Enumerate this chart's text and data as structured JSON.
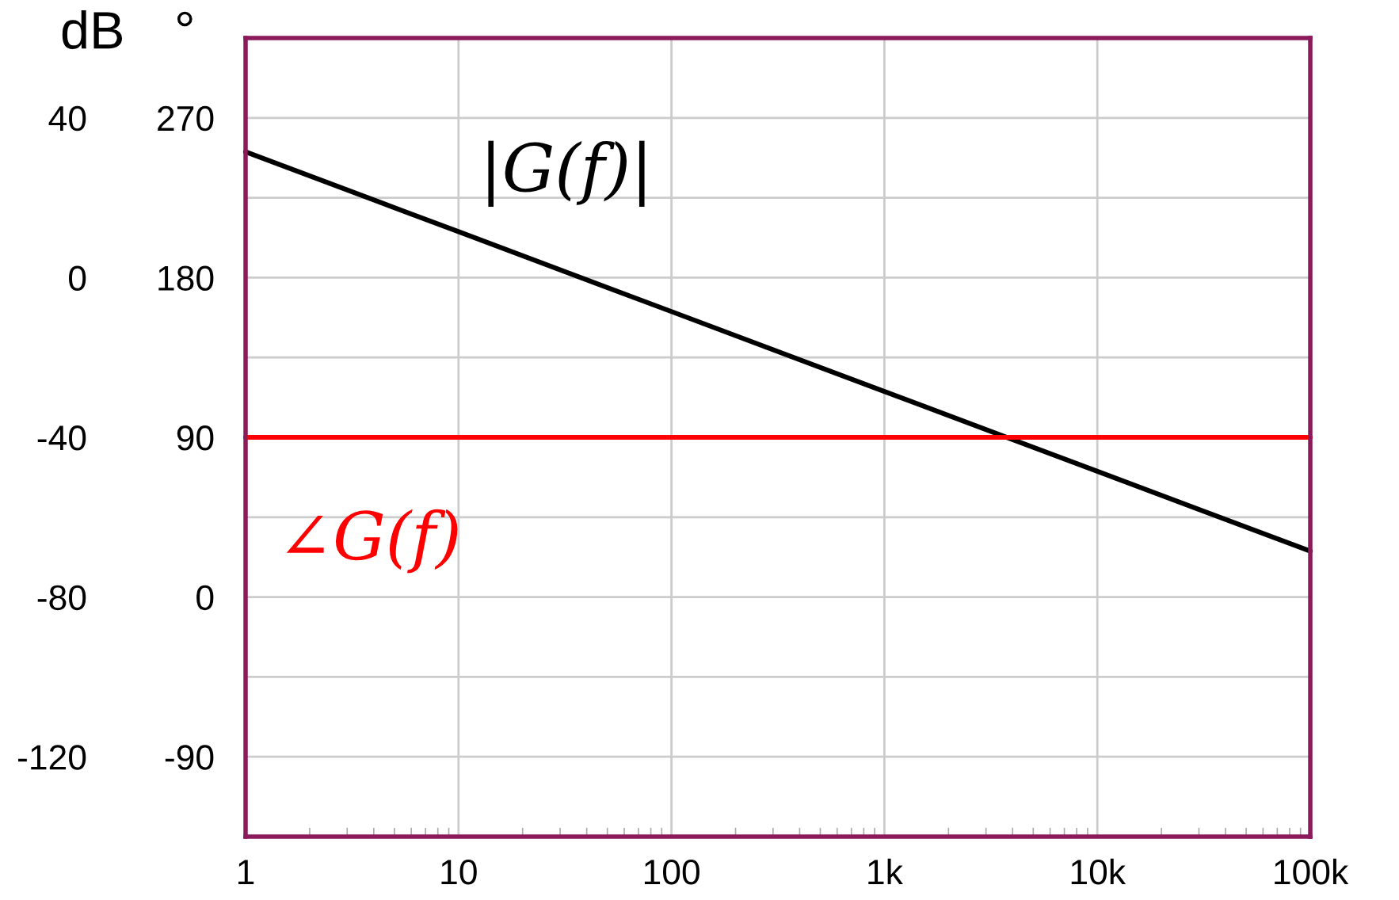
{
  "chart_data": {
    "type": "line",
    "ylabel": "dB",
    "y2label": "°",
    "series": [
      {
        "name": "|G(f)|",
        "color": "#000000",
        "x": [
          1,
          10,
          100,
          1000,
          10000,
          100000
        ],
        "values": [
          31.5,
          11.5,
          -8.5,
          -28.5,
          -48.5,
          -68.5
        ]
      },
      {
        "name": "∠G(f)",
        "color": "#ff0000",
        "x": [
          1,
          10,
          100,
          1000,
          10000,
          100000
        ],
        "values": [
          90,
          90,
          90,
          90,
          90,
          90
        ],
        "axis": "y2"
      }
    ],
    "xlim": [
      1,
      100000
    ],
    "xticks": [
      1,
      10,
      100,
      {
        "value": 1000,
        "label": "1k"
      },
      {
        "value": 10000,
        "label": "10k"
      },
      {
        "value": 100000,
        "label": "100k"
      }
    ],
    "ylim": [
      -140,
      60
    ],
    "yticks": [
      {
        "value": -120,
        "label": "-120"
      },
      {
        "value": -100,
        "label": null
      },
      {
        "value": -80,
        "label": "-80"
      },
      {
        "value": -60,
        "label": null
      },
      {
        "value": -40,
        "label": "-40"
      },
      {
        "value": -20,
        "label": null
      },
      0,
      {
        "value": 20,
        "label": null
      },
      40
    ],
    "y2lim": [
      -135,
      315
    ],
    "y2ticks": [
      {
        "value": -90,
        "label": "-90"
      },
      0,
      90,
      180,
      270
    ],
    "log": "x",
    "grid": true,
    "legend": false,
    "marker": "none",
    "line_style": "solid"
  }
}
